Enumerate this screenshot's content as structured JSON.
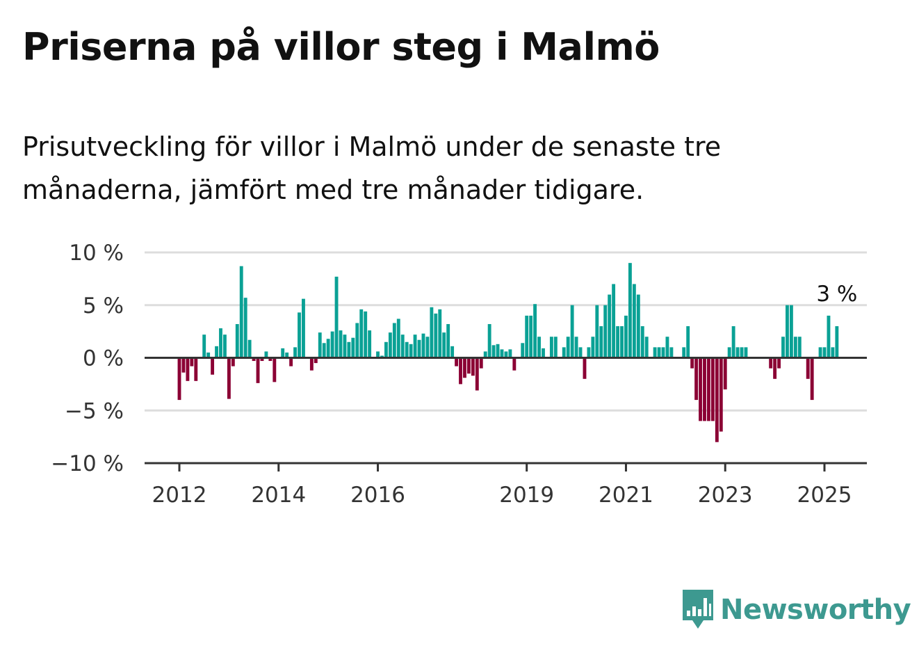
{
  "title": "Priserna på villor steg i Malmö",
  "subtitle": "Prisutveckling för villor i Malmö under de senaste tre månaderna, jämfört med tre månader tidigare.",
  "brand": {
    "name": "Newsworthy",
    "color": "#3d9990"
  },
  "colors": {
    "positive": "#0aa195",
    "negative": "#8b0034",
    "grid": "#dddddd",
    "axis": "#333333"
  },
  "chart_data": {
    "type": "bar",
    "title": "",
    "xlabel": "",
    "ylabel": "",
    "ylim": [
      -10,
      10
    ],
    "yticks": [
      {
        "value": 10,
        "label": "10 %"
      },
      {
        "value": 5,
        "label": "5 %"
      },
      {
        "value": 0,
        "label": "0 %"
      },
      {
        "value": -5,
        "label": "−5 %"
      },
      {
        "value": -10,
        "label": "−10 %"
      }
    ],
    "xlim": [
      "2012-01",
      "2025-05"
    ],
    "xticks": [
      {
        "date": "2012-01",
        "label": "2012"
      },
      {
        "date": "2014-01",
        "label": "2014"
      },
      {
        "date": "2016-01",
        "label": "2016"
      },
      {
        "date": "2019-01",
        "label": "2019"
      },
      {
        "date": "2021-01",
        "label": "2021"
      },
      {
        "date": "2023-01",
        "label": "2023"
      },
      {
        "date": "2025-01",
        "label": "2025"
      }
    ],
    "grid": true,
    "last_value_label": "3 %",
    "series": [
      {
        "start": "2012-01",
        "values": [
          -4,
          -1.4,
          -2.2,
          -0.8,
          -2.2,
          0,
          2.2,
          0.5,
          -1.6,
          1.1,
          2.8,
          2.2,
          -3.9,
          -0.8,
          3.2,
          8.7,
          5.7,
          1.7,
          -0.3,
          -2.4,
          -0.3,
          0.6,
          -0.3,
          -2.3,
          0,
          0.9,
          0.5,
          -0.8,
          1,
          4.3,
          5.6,
          0,
          -1.2,
          -0.5,
          2.4,
          1.4,
          1.8,
          2.5,
          7.7,
          2.6,
          2.2,
          1.5,
          1.9,
          3.3,
          4.6,
          4.4,
          2.6,
          0,
          0.6,
          0.2,
          1.5,
          2.4,
          3.3,
          3.7,
          2.2,
          1.5,
          1.3,
          2.2,
          1.7,
          2.3,
          2.0,
          4.8,
          4.2,
          4.6,
          2.4,
          3.2,
          1.1,
          -0.8,
          -2.5,
          -1.9,
          -1.5,
          -1.7,
          -3.1,
          -1.0,
          0.6,
          3.2,
          1.2,
          1.3,
          0.8,
          0.6,
          0.8,
          -1.2,
          0,
          1.4,
          4.0,
          4.0,
          5.1,
          2.0,
          0.9,
          0,
          2.0,
          2.0,
          0,
          1.0,
          2.0,
          5.0,
          2.0,
          1.0,
          -2.0,
          1.0,
          2.0,
          5.0,
          3.0,
          5.0,
          6.0,
          7.0,
          3.0,
          3.0,
          4.0,
          9.0,
          7.0,
          6.0,
          3.0,
          2.0,
          0,
          1.0,
          1.0,
          1.0,
          2.0,
          1.0,
          0,
          0,
          1.0,
          3.0,
          -1.0,
          -4.0,
          -6.0,
          -6.0,
          -6.0,
          -6.0,
          -8.0,
          -7.0,
          -3.0,
          1.0,
          3.0,
          1.0,
          1.0,
          1.0,
          0,
          0,
          0,
          0,
          0,
          -1.0,
          -2.0,
          -1.0,
          2.0,
          5.0,
          5.0,
          2.0,
          2.0,
          0,
          -2.0,
          -4.0,
          0,
          1.0,
          1.0,
          4.0,
          1.0,
          3.0
        ]
      }
    ]
  }
}
